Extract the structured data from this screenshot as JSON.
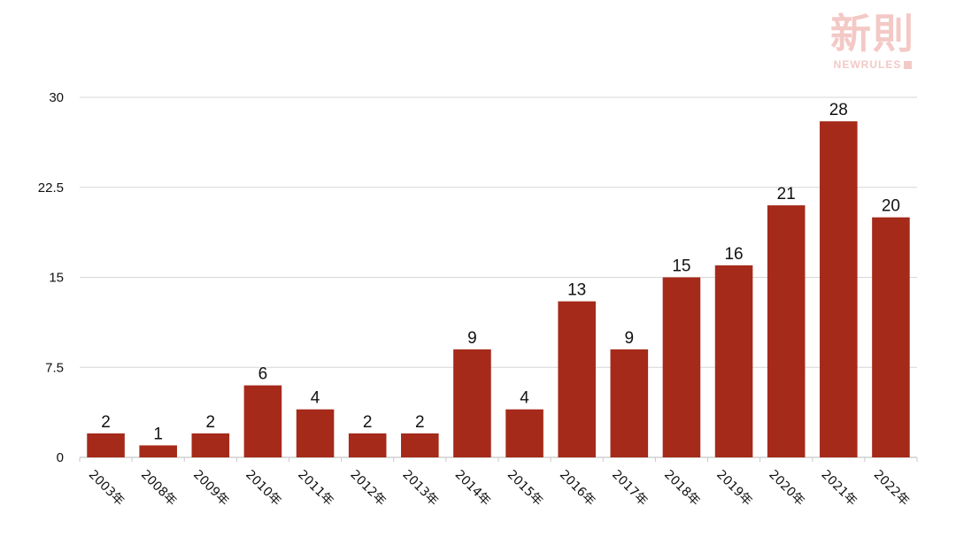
{
  "logo": {
    "cn": "新則",
    "en": "NEWRULES"
  },
  "colors": {
    "bar": "#a52a1a",
    "grid": "#d6d6d6",
    "axis": "#c8c8c8",
    "text": "#111111",
    "logo": "#f3c9c6"
  },
  "chart_data": {
    "type": "bar",
    "categories": [
      "2003年",
      "2008年",
      "2009年",
      "2010年",
      "2011年",
      "2012年",
      "2013年",
      "2014年",
      "2015年",
      "2016年",
      "2017年",
      "2018年",
      "2019年",
      "2020年",
      "2021年",
      "2022年"
    ],
    "values": [
      2,
      1,
      2,
      6,
      4,
      2,
      2,
      9,
      4,
      13,
      9,
      15,
      16,
      21,
      28,
      20
    ],
    "yticks": [
      "0",
      "7.5",
      "15",
      "22.5",
      "30"
    ],
    "ylim": [
      0,
      30
    ],
    "grid": true,
    "data_labels": true,
    "legend": "none"
  }
}
